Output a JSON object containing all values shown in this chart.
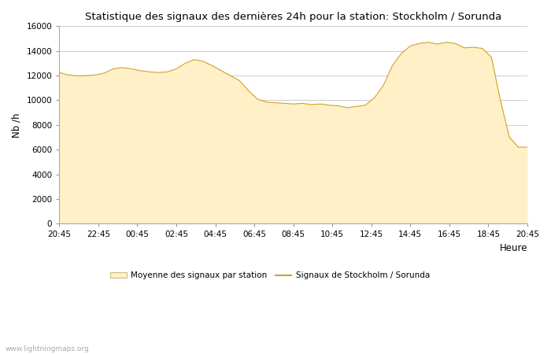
{
  "title": "Statistique des signaux des dernières 24h pour la station: Stockholm / Sorunda",
  "xlabel": "Heure",
  "ylabel": "Nb /h",
  "ylim": [
    0,
    16000
  ],
  "yticks": [
    0,
    2000,
    4000,
    6000,
    8000,
    10000,
    12000,
    14000,
    16000
  ],
  "xtick_labels": [
    "20:45",
    "22:45",
    "00:45",
    "02:45",
    "04:45",
    "06:45",
    "08:45",
    "10:45",
    "12:45",
    "14:45",
    "16:45",
    "18:45",
    "20:45"
  ],
  "fill_color": "#FFF0C8",
  "fill_edge_color": "#E8C870",
  "line_color": "#D4A020",
  "background_color": "#ffffff",
  "grid_color": "#cccccc",
  "legend_label_fill": "Moyenne des signaux par station",
  "legend_label_line": "Signaux de Stockholm / Sorunda",
  "watermark": "www.lightningmaps.org",
  "y_fill": [
    12250,
    12050,
    11980,
    12000,
    12050,
    12200,
    12550,
    12650,
    12550,
    12400,
    12300,
    12250,
    12300,
    12550,
    13000,
    13300,
    13150,
    12800,
    12400,
    12000,
    11600,
    10800,
    10100,
    9850,
    9800,
    9750,
    9700,
    9750,
    9650,
    9700,
    9600,
    9550,
    9400,
    9500,
    9600,
    10200,
    11200,
    12800,
    13800,
    14400,
    14600,
    14700,
    14550,
    14700,
    14600,
    14250,
    14300,
    14200,
    13500,
    10000,
    7000,
    6200,
    6200
  ]
}
